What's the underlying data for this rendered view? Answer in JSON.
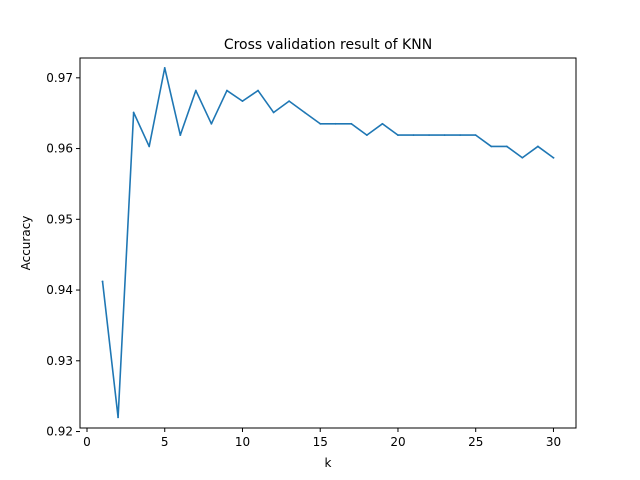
{
  "chart_data": {
    "type": "line",
    "title": "Cross validation result of KNN",
    "xlabel": "k",
    "ylabel": "Accuracy",
    "xlim": [
      -0.45,
      31.45
    ],
    "ylim": [
      0.9205,
      0.9728
    ],
    "xticks": [
      0,
      5,
      10,
      15,
      20,
      25,
      30
    ],
    "xtick_labels": [
      "0",
      "5",
      "10",
      "15",
      "20",
      "25",
      "30"
    ],
    "yticks": [
      0.92,
      0.93,
      0.94,
      0.95,
      0.96,
      0.97
    ],
    "ytick_labels": [
      "0.92",
      "0.93",
      "0.94",
      "0.95",
      "0.96",
      "0.97"
    ],
    "grid": false,
    "line_color": "#1f77b4",
    "x": [
      1,
      2,
      3,
      4,
      5,
      6,
      7,
      8,
      9,
      10,
      11,
      12,
      13,
      14,
      15,
      16,
      17,
      18,
      19,
      20,
      21,
      22,
      23,
      24,
      25,
      26,
      27,
      28,
      29,
      30
    ],
    "series": [
      {
        "values": [
          0.9412,
          0.922,
          0.9651,
          0.9603,
          0.9714,
          0.9619,
          0.9682,
          0.9635,
          0.9682,
          0.9667,
          0.9682,
          0.9651,
          0.9667,
          0.9651,
          0.9635,
          0.9635,
          0.9635,
          0.9619,
          0.9635,
          0.9619,
          0.9619,
          0.9619,
          0.9619,
          0.9619,
          0.9619,
          0.9603,
          0.9603,
          0.9587,
          0.9603,
          0.9587
        ]
      }
    ]
  }
}
